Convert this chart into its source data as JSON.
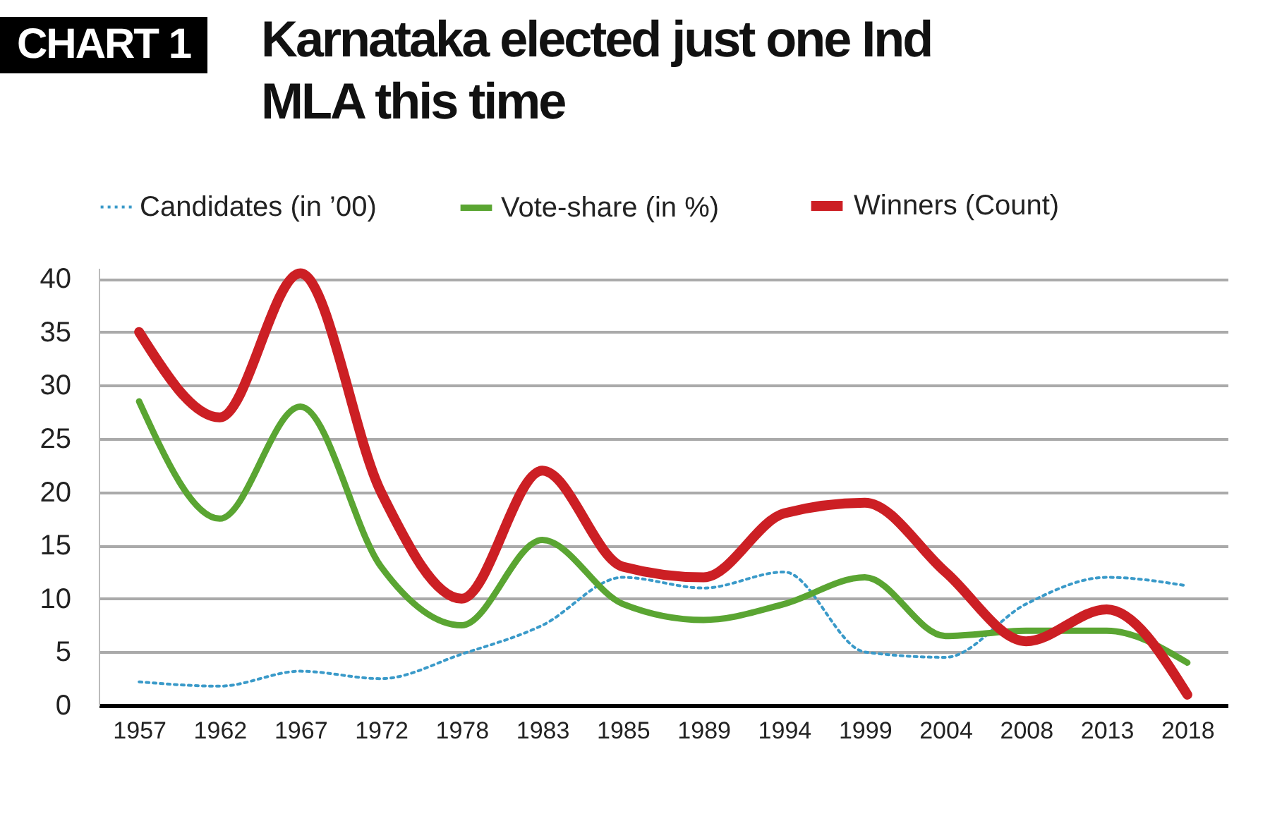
{
  "chart_data": {
    "type": "line",
    "title": "Karnataka elected just one Ind MLA this time",
    "annotations": [
      "CHART 1"
    ],
    "categories": [
      "1957",
      "1962",
      "1967",
      "1972",
      "1978",
      "1983",
      "1985",
      "1989",
      "1994",
      "1999",
      "2004",
      "2008",
      "2013",
      "2018"
    ],
    "series": [
      {
        "name": "Candidates (in ’00)",
        "color": "#3a9ac9",
        "line_style": "dotted",
        "values": [
          2.2,
          1.8,
          3.2,
          2.5,
          4.8,
          7.5,
          12,
          11,
          12.5,
          5,
          4.5,
          9.5,
          12,
          11.2
        ]
      },
      {
        "name": "Vote-share (in %)",
        "color": "#5aa532",
        "line_style": "solid",
        "values": [
          28.5,
          17.5,
          28,
          13,
          7.5,
          15.5,
          9.5,
          8,
          9.5,
          12,
          6.5,
          7,
          7,
          4
        ]
      },
      {
        "name": "Winners (Count)",
        "color": "#cc1f24",
        "line_style": "solid",
        "values": [
          35,
          27,
          40.5,
          20,
          10,
          22,
          13,
          12,
          18,
          19,
          12.5,
          6,
          9,
          1
        ]
      }
    ],
    "ylim": [
      0,
      41
    ],
    "yticks": [
      0,
      5,
      10,
      15,
      20,
      25,
      30,
      35,
      40
    ],
    "grid": "y",
    "legend": "top left"
  }
}
